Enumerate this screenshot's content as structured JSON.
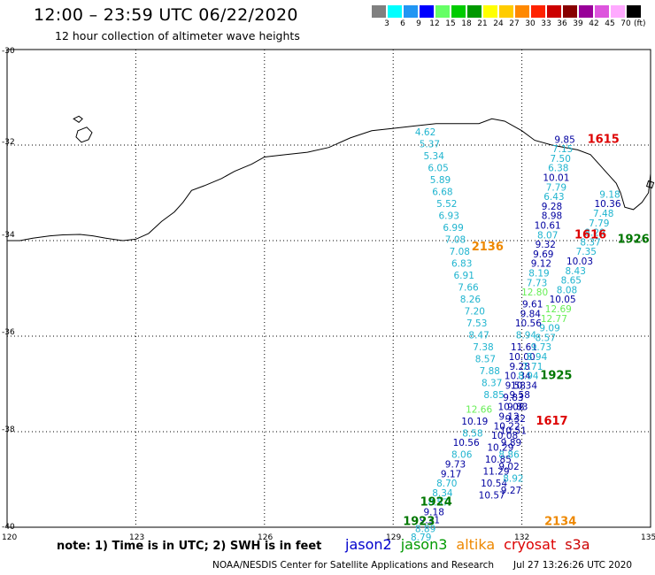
{
  "header": {
    "title": "12:00 – 23:59 UTC 06/22/2020",
    "subtitle": "12 hour collection of altimeter wave heights"
  },
  "legend": {
    "unit": "(ft)",
    "bins": [
      {
        "label": "3",
        "color": "#808080"
      },
      {
        "label": "6",
        "color": "#00ffff"
      },
      {
        "label": "9",
        "color": "#2196f3"
      },
      {
        "label": "12",
        "color": "#0000ff"
      },
      {
        "label": "15",
        "color": "#66ff66"
      },
      {
        "label": "18",
        "color": "#00cc00"
      },
      {
        "label": "21",
        "color": "#009900"
      },
      {
        "label": "24",
        "color": "#ffff00"
      },
      {
        "label": "27",
        "color": "#ffcc00"
      },
      {
        "label": "30",
        "color": "#ff8800"
      },
      {
        "label": "33",
        "color": "#ff2200"
      },
      {
        "label": "36",
        "color": "#cc0000"
      },
      {
        "label": "39",
        "color": "#880000"
      },
      {
        "label": "42",
        "color": "#990099"
      },
      {
        "label": "45",
        "color": "#dd55dd"
      },
      {
        "label": "70",
        "color": "#ffaaff"
      },
      {
        "label": "",
        "color": "#000000"
      }
    ]
  },
  "axes": {
    "x_ticks": [
      "120",
      "123",
      "126",
      "129",
      "132",
      "135"
    ],
    "y_ticks": [
      "-30",
      "-32",
      "-34",
      "-36",
      "-38",
      "-40"
    ]
  },
  "colors": {
    "cyan": "#1fb4cf",
    "navy": "#0000a0",
    "lightgreen": "#66ee55",
    "red": "#dd0000",
    "orange": "#ee8800",
    "green": "#007700",
    "coast": "#000000"
  },
  "track_labels": [
    {
      "text": "1615",
      "lon": 133.9,
      "lat": -31.95,
      "color": "red"
    },
    {
      "text": "1616",
      "lon": 133.6,
      "lat": -33.95,
      "color": "red"
    },
    {
      "text": "1617",
      "lon": 132.7,
      "lat": -37.85,
      "color": "red"
    },
    {
      "text": "2136",
      "lon": 131.2,
      "lat": -34.2,
      "color": "orange"
    },
    {
      "text": "2134",
      "lon": 132.9,
      "lat": -39.95,
      "color": "orange"
    },
    {
      "text": "1926",
      "lon": 134.6,
      "lat": -34.05,
      "color": "green"
    },
    {
      "text": "1925",
      "lon": 132.8,
      "lat": -36.9,
      "color": "green"
    },
    {
      "text": "1924",
      "lon": 130.0,
      "lat": -39.55,
      "color": "green"
    },
    {
      "text": "1923",
      "lon": 129.6,
      "lat": -39.95,
      "color": "green"
    }
  ],
  "points": [
    {
      "text": "4.62",
      "lon": 129.75,
      "lat": -31.8,
      "color": "cyan"
    },
    {
      "text": "5.37",
      "lon": 129.85,
      "lat": -32.05,
      "color": "cyan"
    },
    {
      "text": "5.34",
      "lon": 129.95,
      "lat": -32.3,
      "color": "cyan"
    },
    {
      "text": "6.05",
      "lon": 130.05,
      "lat": -32.55,
      "color": "cyan"
    },
    {
      "text": "5.89",
      "lon": 130.1,
      "lat": -32.8,
      "color": "cyan"
    },
    {
      "text": "6.68",
      "lon": 130.15,
      "lat": -33.05,
      "color": "cyan"
    },
    {
      "text": "5.52",
      "lon": 130.25,
      "lat": -33.3,
      "color": "cyan"
    },
    {
      "text": "6.93",
      "lon": 130.3,
      "lat": -33.55,
      "color": "cyan"
    },
    {
      "text": "6.99",
      "lon": 130.4,
      "lat": -33.8,
      "color": "cyan"
    },
    {
      "text": "7.08",
      "lon": 130.45,
      "lat": -34.05,
      "color": "cyan"
    },
    {
      "text": "7.08",
      "lon": 130.55,
      "lat": -34.3,
      "color": "cyan"
    },
    {
      "text": "6.83",
      "lon": 130.6,
      "lat": -34.55,
      "color": "cyan"
    },
    {
      "text": "6.91",
      "lon": 130.65,
      "lat": -34.8,
      "color": "cyan"
    },
    {
      "text": "7.66",
      "lon": 130.75,
      "lat": -35.05,
      "color": "cyan"
    },
    {
      "text": "8.26",
      "lon": 130.8,
      "lat": -35.3,
      "color": "cyan"
    },
    {
      "text": "7.20",
      "lon": 130.9,
      "lat": -35.55,
      "color": "cyan"
    },
    {
      "text": "7.53",
      "lon": 130.95,
      "lat": -35.8,
      "color": "cyan"
    },
    {
      "text": "8.47",
      "lon": 131.0,
      "lat": -36.05,
      "color": "cyan"
    },
    {
      "text": "7.38",
      "lon": 131.1,
      "lat": -36.3,
      "color": "cyan"
    },
    {
      "text": "8.57",
      "lon": 131.15,
      "lat": -36.55,
      "color": "cyan"
    },
    {
      "text": "7.88",
      "lon": 131.25,
      "lat": -36.8,
      "color": "cyan"
    },
    {
      "text": "8.37",
      "lon": 131.3,
      "lat": -37.05,
      "color": "cyan"
    },
    {
      "text": "8.85",
      "lon": 131.35,
      "lat": -37.3,
      "color": "cyan"
    },
    {
      "text": "12.66",
      "lon": 131.0,
      "lat": -37.6,
      "color": "lightgreen"
    },
    {
      "text": "10.19",
      "lon": 130.9,
      "lat": -37.85,
      "color": "navy"
    },
    {
      "text": "8.58",
      "lon": 130.85,
      "lat": -38.1,
      "color": "cyan"
    },
    {
      "text": "10.56",
      "lon": 130.7,
      "lat": -38.3,
      "color": "navy"
    },
    {
      "text": "8.06",
      "lon": 130.6,
      "lat": -38.55,
      "color": "cyan"
    },
    {
      "text": "9.73",
      "lon": 130.45,
      "lat": -38.75,
      "color": "navy"
    },
    {
      "text": "9.17",
      "lon": 130.35,
      "lat": -38.95,
      "color": "navy"
    },
    {
      "text": "8.70",
      "lon": 130.25,
      "lat": -39.15,
      "color": "cyan"
    },
    {
      "text": "8.34",
      "lon": 130.15,
      "lat": -39.35,
      "color": "cyan"
    },
    {
      "text": "8.57",
      "lon": 130.05,
      "lat": -39.55,
      "color": "cyan"
    },
    {
      "text": "9.18",
      "lon": 129.95,
      "lat": -39.75,
      "color": "navy"
    },
    {
      "text": "9.31",
      "lon": 129.85,
      "lat": -39.92,
      "color": "navy"
    },
    {
      "text": "8.89",
      "lon": 129.75,
      "lat": -40.1,
      "color": "cyan"
    },
    {
      "text": "8.79",
      "lon": 129.65,
      "lat": -40.28,
      "color": "cyan"
    },
    {
      "text": "9.85",
      "lon": 133.0,
      "lat": -31.95,
      "color": "navy"
    },
    {
      "text": "7.15",
      "lon": 132.95,
      "lat": -32.15,
      "color": "cyan"
    },
    {
      "text": "7.50",
      "lon": 132.9,
      "lat": -32.35,
      "color": "cyan"
    },
    {
      "text": "6.38",
      "lon": 132.85,
      "lat": -32.55,
      "color": "cyan"
    },
    {
      "text": "10.01",
      "lon": 132.8,
      "lat": -32.75,
      "color": "navy"
    },
    {
      "text": "7.79",
      "lon": 132.8,
      "lat": -32.95,
      "color": "cyan"
    },
    {
      "text": "6.43",
      "lon": 132.75,
      "lat": -33.15,
      "color": "cyan"
    },
    {
      "text": "9.28",
      "lon": 132.7,
      "lat": -33.35,
      "color": "navy"
    },
    {
      "text": "8.98",
      "lon": 132.7,
      "lat": -33.55,
      "color": "navy"
    },
    {
      "text": "10.61",
      "lon": 132.6,
      "lat": -33.75,
      "color": "navy"
    },
    {
      "text": "8.07",
      "lon": 132.6,
      "lat": -33.95,
      "color": "cyan"
    },
    {
      "text": "9.32",
      "lon": 132.55,
      "lat": -34.15,
      "color": "navy"
    },
    {
      "text": "9.69",
      "lon": 132.5,
      "lat": -34.35,
      "color": "navy"
    },
    {
      "text": "9.12",
      "lon": 132.45,
      "lat": -34.55,
      "color": "navy"
    },
    {
      "text": "8.19",
      "lon": 132.4,
      "lat": -34.75,
      "color": "cyan"
    },
    {
      "text": "7.73",
      "lon": 132.35,
      "lat": -34.95,
      "color": "cyan"
    },
    {
      "text": "12.80",
      "lon": 132.3,
      "lat": -35.15,
      "color": "lightgreen"
    },
    {
      "text": "9.61",
      "lon": 132.25,
      "lat": -35.4,
      "color": "navy"
    },
    {
      "text": "9.84",
      "lon": 132.2,
      "lat": -35.6,
      "color": "navy"
    },
    {
      "text": "10.56",
      "lon": 132.15,
      "lat": -35.8,
      "color": "navy"
    },
    {
      "text": "8.94",
      "lon": 132.1,
      "lat": -36.05,
      "color": "cyan"
    },
    {
      "text": "11.61",
      "lon": 132.05,
      "lat": -36.3,
      "color": "navy"
    },
    {
      "text": "10.00",
      "lon": 132.0,
      "lat": -36.5,
      "color": "navy"
    },
    {
      "text": "9.28",
      "lon": 131.95,
      "lat": -36.7,
      "color": "navy"
    },
    {
      "text": "10.34",
      "lon": 131.9,
      "lat": -36.9,
      "color": "navy"
    },
    {
      "text": "9.58",
      "lon": 131.85,
      "lat": -37.1,
      "color": "navy"
    },
    {
      "text": "9.83",
      "lon": 131.8,
      "lat": -37.35,
      "color": "navy"
    },
    {
      "text": "10.08",
      "lon": 131.75,
      "lat": -37.55,
      "color": "navy"
    },
    {
      "text": "9.12",
      "lon": 131.7,
      "lat": -37.75,
      "color": "navy"
    },
    {
      "text": "10.22",
      "lon": 131.65,
      "lat": -37.95,
      "color": "navy"
    },
    {
      "text": "10.08",
      "lon": 131.6,
      "lat": -38.15,
      "color": "navy"
    },
    {
      "text": "10.29",
      "lon": 131.5,
      "lat": -38.4,
      "color": "navy"
    },
    {
      "text": "10.85",
      "lon": 131.45,
      "lat": -38.65,
      "color": "navy"
    },
    {
      "text": "11.29",
      "lon": 131.4,
      "lat": -38.9,
      "color": "navy"
    },
    {
      "text": "10.54",
      "lon": 131.35,
      "lat": -39.15,
      "color": "navy"
    },
    {
      "text": "10.57",
      "lon": 131.3,
      "lat": -39.4,
      "color": "navy"
    },
    {
      "text": "9.18",
      "lon": 134.05,
      "lat": -33.1,
      "color": "cyan"
    },
    {
      "text": "10.36",
      "lon": 134.0,
      "lat": -33.3,
      "color": "navy"
    },
    {
      "text": "7.48",
      "lon": 133.9,
      "lat": -33.5,
      "color": "cyan"
    },
    {
      "text": "7.79",
      "lon": 133.8,
      "lat": -33.7,
      "color": "cyan"
    },
    {
      "text": "8.29",
      "lon": 133.7,
      "lat": -33.9,
      "color": "cyan"
    },
    {
      "text": "8.37",
      "lon": 133.6,
      "lat": -34.1,
      "color": "cyan"
    },
    {
      "text": "7.35",
      "lon": 133.5,
      "lat": -34.3,
      "color": "cyan"
    },
    {
      "text": "10.03",
      "lon": 133.35,
      "lat": -34.5,
      "color": "navy"
    },
    {
      "text": "8.43",
      "lon": 133.25,
      "lat": -34.7,
      "color": "cyan"
    },
    {
      "text": "8.65",
      "lon": 133.15,
      "lat": -34.9,
      "color": "cyan"
    },
    {
      "text": "8.08",
      "lon": 133.05,
      "lat": -35.1,
      "color": "cyan"
    },
    {
      "text": "10.05",
      "lon": 132.95,
      "lat": -35.3,
      "color": "navy"
    },
    {
      "text": "12.69",
      "lon": 132.85,
      "lat": -35.5,
      "color": "lightgreen"
    },
    {
      "text": "12.77",
      "lon": 132.75,
      "lat": -35.7,
      "color": "lightgreen"
    },
    {
      "text": "9.09",
      "lon": 132.65,
      "lat": -35.9,
      "color": "cyan"
    },
    {
      "text": "8.57",
      "lon": 132.55,
      "lat": -36.1,
      "color": "cyan"
    },
    {
      "text": "9.73",
      "lon": 132.45,
      "lat": -36.3,
      "color": "cyan"
    },
    {
      "text": "8.94",
      "lon": 132.35,
      "lat": -36.5,
      "color": "cyan"
    },
    {
      "text": "7.71",
      "lon": 132.25,
      "lat": -36.7,
      "color": "cyan"
    },
    {
      "text": "8.94",
      "lon": 132.15,
      "lat": -36.9,
      "color": "cyan"
    },
    {
      "text": "10.34",
      "lon": 132.05,
      "lat": -37.1,
      "color": "navy"
    },
    {
      "text": "9.58",
      "lon": 131.95,
      "lat": -37.3,
      "color": "navy"
    },
    {
      "text": "9.83",
      "lon": 131.9,
      "lat": -37.55,
      "color": "navy"
    },
    {
      "text": "9.32",
      "lon": 131.85,
      "lat": -37.8,
      "color": "navy"
    },
    {
      "text": "10.51",
      "lon": 131.8,
      "lat": -38.05,
      "color": "navy"
    },
    {
      "text": "9.89",
      "lon": 131.75,
      "lat": -38.3,
      "color": "navy"
    },
    {
      "text": "8.86",
      "lon": 131.7,
      "lat": -38.55,
      "color": "cyan"
    },
    {
      "text": "9.02",
      "lon": 131.7,
      "lat": -38.8,
      "color": "navy"
    },
    {
      "text": "8.92",
      "lon": 131.8,
      "lat": -39.05,
      "color": "cyan"
    },
    {
      "text": "9.27",
      "lon": 131.75,
      "lat": -39.3,
      "color": "navy"
    }
  ],
  "footer": {
    "note": "note:  1) Time is in UTC;  2) SWH is in feet",
    "satellites": [
      {
        "name": "jason2",
        "color": "#0000cc"
      },
      {
        "name": "jason3",
        "color": "#009900"
      },
      {
        "name": "altika",
        "color": "#ee8800"
      },
      {
        "name": "cryosat",
        "color": "#dd0000"
      },
      {
        "name": "s3a",
        "color": "#cc0000"
      }
    ],
    "credit": "NOAA/NESDIS Center for Satellite Applications and Research",
    "timestamp": "Jul 27 13:26:26 UTC 2020"
  }
}
